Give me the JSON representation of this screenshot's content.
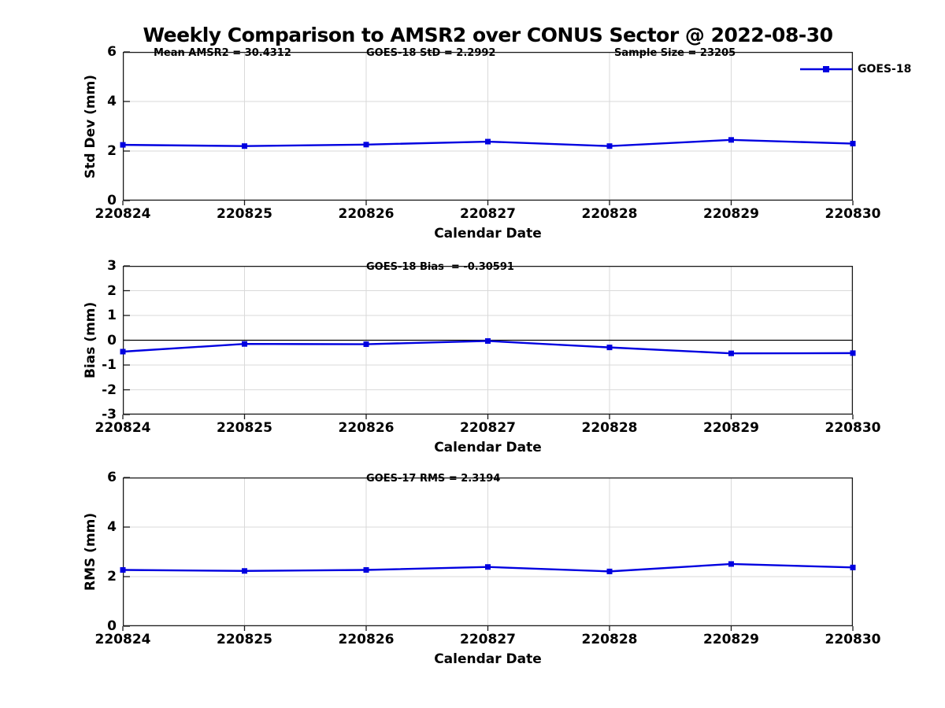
{
  "page": {
    "title": "Weekly Comparison to AMSR2 over CONUS Sector @ 2022-08-30",
    "legend": {
      "label": "GOES-18",
      "marker": "filled-square"
    },
    "colors": {
      "line": "#0000e0",
      "grid": "#d9d9d9",
      "axis": "#1a1a1a",
      "zero_line": "#000000",
      "text": "#000000",
      "background": "#ffffff"
    }
  },
  "chart_data": [
    {
      "type": "line",
      "name": "std-dev",
      "ylabel": "Std Dev (mm)",
      "xlabel": "Calendar Date",
      "ylim": [
        0,
        6
      ],
      "yticks": [
        0,
        2,
        4,
        6
      ],
      "categories": [
        "220824",
        "220825",
        "220826",
        "220827",
        "220828",
        "220829",
        "220830"
      ],
      "series": [
        {
          "name": "GOES-18",
          "values": [
            2.25,
            2.2,
            2.26,
            2.38,
            2.2,
            2.45,
            2.3
          ]
        }
      ],
      "grid": true,
      "zero_line": false,
      "legend_position": "top-right",
      "annotations": [
        "Mean AMSR2 = 30.4312",
        "GOES-18 StD = 2.2992",
        "Sample Size = 23205"
      ]
    },
    {
      "type": "line",
      "name": "bias",
      "ylabel": "Bias (mm)",
      "xlabel": "Calendar Date",
      "ylim": [
        -3,
        3
      ],
      "yticks": [
        -3,
        -2,
        -1,
        0,
        1,
        2,
        3
      ],
      "categories": [
        "220824",
        "220825",
        "220826",
        "220827",
        "220828",
        "220829",
        "220830"
      ],
      "series": [
        {
          "name": "GOES-18",
          "values": [
            -0.46,
            -0.15,
            -0.16,
            -0.03,
            -0.29,
            -0.53,
            -0.52
          ]
        }
      ],
      "grid": true,
      "zero_line": true,
      "legend_position": "none",
      "annotations": [
        "GOES-18 Bias  = -0.30591"
      ]
    },
    {
      "type": "line",
      "name": "rms",
      "ylabel": "RMS (mm)",
      "xlabel": "Calendar Date",
      "ylim": [
        0,
        6
      ],
      "yticks": [
        0,
        2,
        4,
        6
      ],
      "categories": [
        "220824",
        "220825",
        "220826",
        "220827",
        "220828",
        "220829",
        "220830"
      ],
      "series": [
        {
          "name": "GOES-18",
          "values": [
            2.27,
            2.23,
            2.27,
            2.39,
            2.21,
            2.51,
            2.37
          ]
        }
      ],
      "grid": true,
      "zero_line": false,
      "legend_position": "none",
      "annotations": [
        "GOES-17 RMS = 2.3194"
      ]
    }
  ]
}
